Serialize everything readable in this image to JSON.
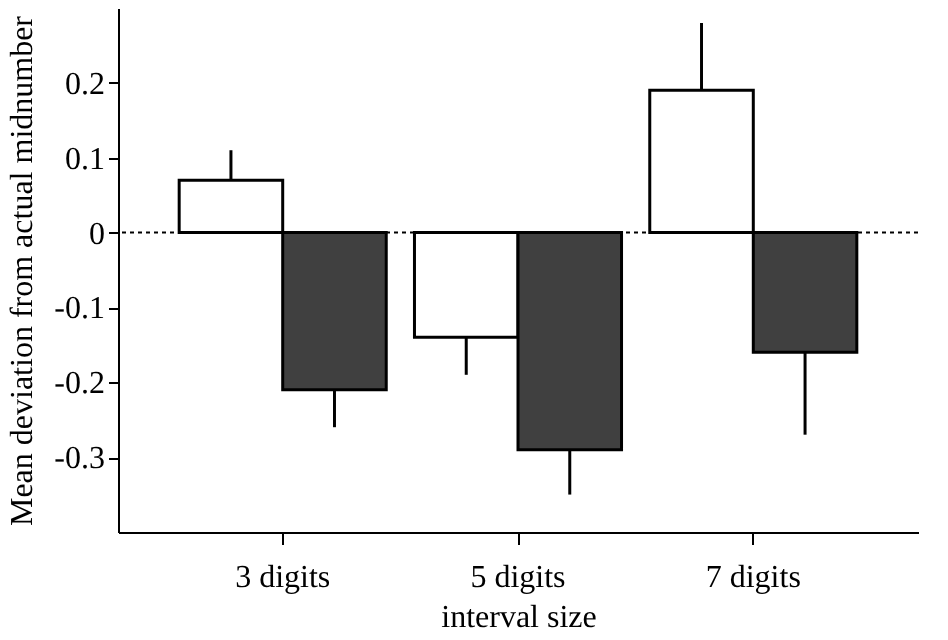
{
  "chart_data": {
    "type": "bar",
    "xlabel": "interval size",
    "ylabel": "Mean deviation from actual midnumber",
    "categories": [
      "3 digits",
      "5 digits",
      "7 digits"
    ],
    "series": [
      {
        "color": "#ffffff",
        "values": [
          0.07,
          -0.14,
          0.19
        ],
        "errors": [
          [
            0.07,
            0.11
          ],
          [
            -0.19,
            -0.14
          ],
          [
            0.19,
            0.28
          ]
        ]
      },
      {
        "color": "#404040",
        "values": [
          -0.21,
          -0.29,
          -0.16
        ],
        "errors": [
          [
            -0.26,
            -0.21
          ],
          [
            -0.35,
            -0.29
          ],
          [
            -0.27,
            -0.16
          ]
        ]
      }
    ],
    "ylim": [
      -0.4,
      0.3
    ],
    "yticks": [
      -0.3,
      -0.2,
      -0.1,
      0,
      0.1,
      0.2
    ],
    "ref_lines": [
      {
        "axis": "y",
        "value": 0,
        "line_style": "dotted"
      }
    ],
    "grid": false,
    "legend": false
  }
}
